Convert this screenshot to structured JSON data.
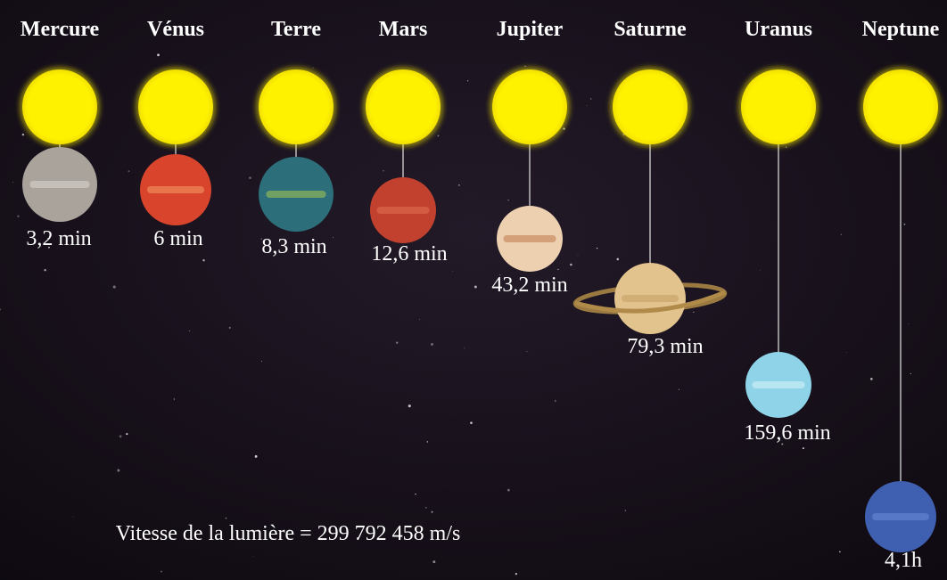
{
  "planets": [
    {
      "name": "Mercure",
      "time": "3,2 min"
    },
    {
      "name": "Vénus",
      "time": "6 min"
    },
    {
      "name": "Terre",
      "time": "8,3 min"
    },
    {
      "name": "Mars",
      "time": "12,6 min"
    },
    {
      "name": "Jupiter",
      "time": "43,2 min"
    },
    {
      "name": "Saturne",
      "time": "79,3 min"
    },
    {
      "name": "Uranus",
      "time": "159,6 min"
    },
    {
      "name": "Neptune",
      "time": "4,1h"
    }
  ],
  "footer": "Vitesse de la lumière = 299 792 458 m/s"
}
